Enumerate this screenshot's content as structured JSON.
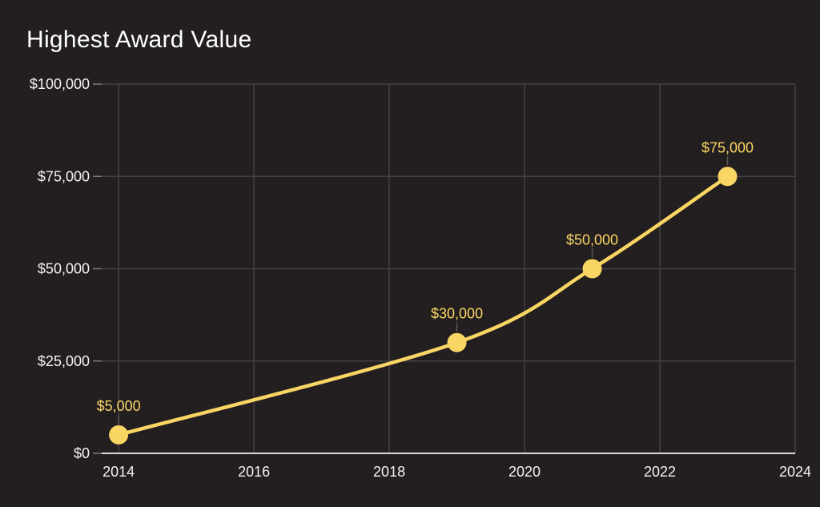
{
  "title": "Highest Award Value",
  "colors": {
    "background": "#231F20",
    "title_text": "#FFFFFF",
    "tick_text": "#F4F2F0",
    "grid": "#454142",
    "tick_mark": "#7E7B79",
    "axis_baseline": "#DCDAD8",
    "accent_yellow": "#F9D564",
    "leader_line": "#5C5856"
  },
  "chart_data": {
    "type": "line",
    "title": "Highest Award Value",
    "x": [
      2014,
      2019,
      2021,
      2023
    ],
    "y": [
      5000,
      30000,
      50000,
      75000
    ],
    "point_labels": [
      "$5,000",
      "$30,000",
      "$50,000",
      "$75,000"
    ],
    "series_name": "Highest Award Value",
    "series_color": "#F9D564",
    "xlabel": "",
    "ylabel": "",
    "xlim": [
      2013.75,
      2024
    ],
    "ylim": [
      0,
      100000
    ],
    "x_ticks": [
      2014,
      2016,
      2018,
      2020,
      2022,
      2024
    ],
    "x_tick_labels": [
      "2014",
      "2016",
      "2018",
      "2020",
      "2022",
      "2024"
    ],
    "y_ticks": [
      0,
      25000,
      50000,
      75000,
      100000
    ],
    "y_tick_labels": [
      "$0",
      "$25,000",
      "$50,000",
      "$75,000",
      "$100,000"
    ],
    "grid": true,
    "legend": false,
    "marker_radius": 12,
    "line_width": 4.5
  }
}
